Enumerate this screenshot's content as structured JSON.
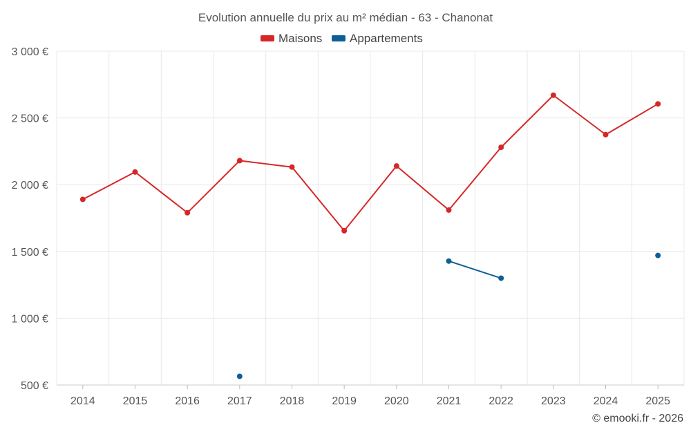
{
  "chart_data": {
    "type": "line",
    "title": "Evolution annuelle du prix au m² médian - 63 - Chanonat",
    "xlabel": "",
    "ylabel": "",
    "categories": [
      "2014",
      "2015",
      "2016",
      "2017",
      "2018",
      "2019",
      "2020",
      "2021",
      "2022",
      "2023",
      "2024",
      "2025"
    ],
    "ylim": [
      500,
      3000
    ],
    "yticks": [
      500,
      1000,
      1500,
      2000,
      2500,
      3000
    ],
    "ytick_labels": [
      "500 €",
      "1 000 €",
      "1 500 €",
      "2 000 €",
      "2 500 €",
      "3 000 €"
    ],
    "grid": true,
    "legend_position": "top-center",
    "series": [
      {
        "name": "Maisons",
        "color": "#d62728",
        "values": [
          1890,
          2095,
          1790,
          2180,
          2132,
          1655,
          2140,
          1810,
          2280,
          2670,
          2375,
          2605
        ]
      },
      {
        "name": "Appartements",
        "color": "#0f5f97",
        "values": [
          null,
          null,
          null,
          565,
          null,
          null,
          null,
          1428,
          1300,
          null,
          null,
          1470
        ]
      }
    ]
  },
  "footer": {
    "credit": "© emooki.fr - 2026"
  }
}
